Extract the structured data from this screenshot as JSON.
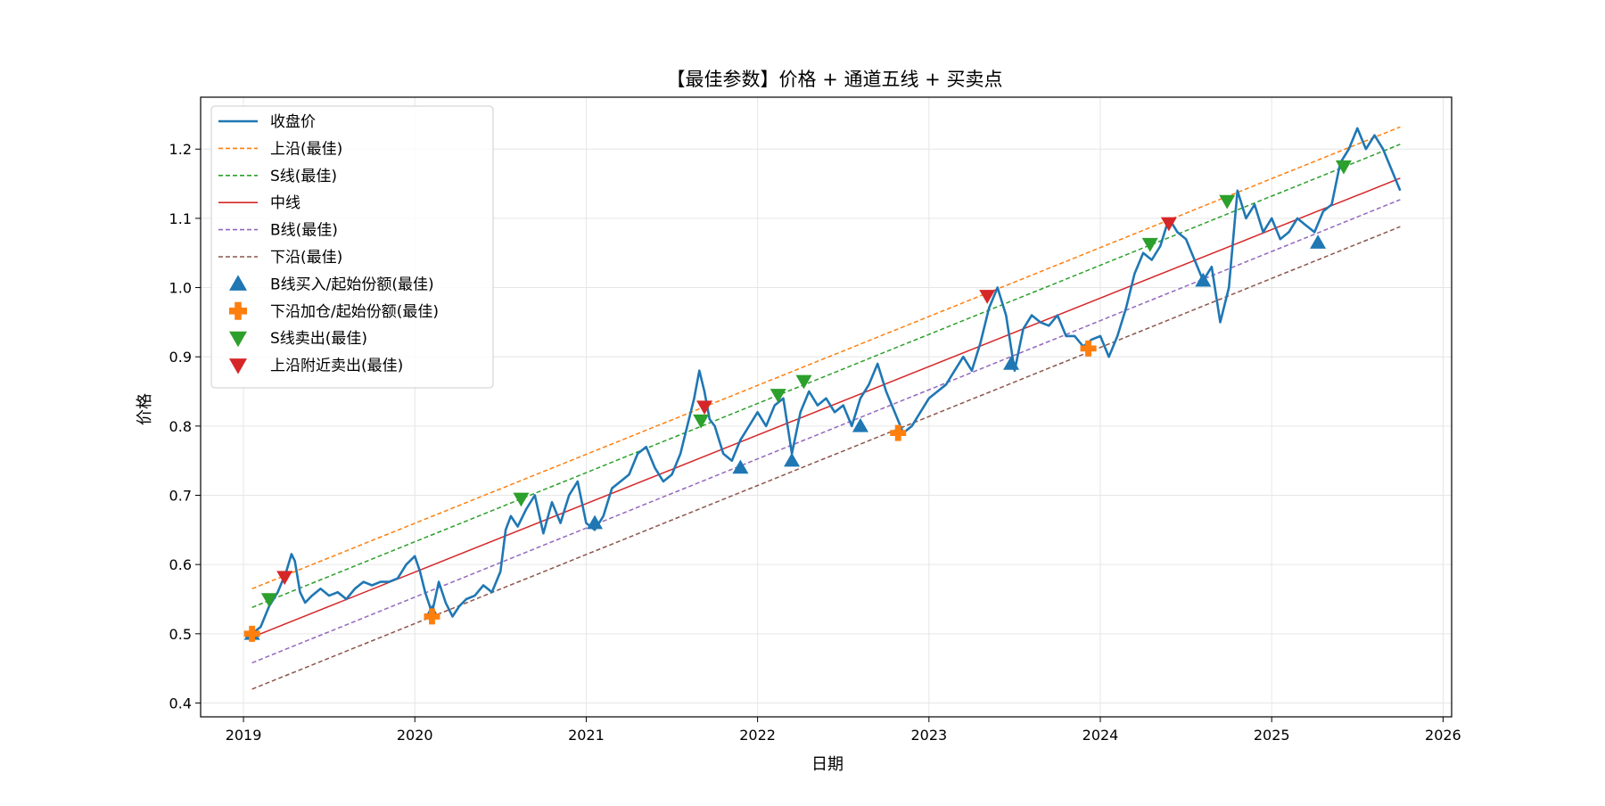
{
  "chart_data": {
    "type": "line",
    "title": "【最佳参数】价格 + 通道五线 + 买卖点",
    "xlabel": "日期",
    "ylabel": "价格",
    "xlim": [
      2018.75,
      2026.05
    ],
    "ylim": [
      0.38,
      1.275
    ],
    "grid": true,
    "legend_position": "top-left",
    "x_ticks": [
      2019,
      2020,
      2021,
      2022,
      2023,
      2024,
      2025,
      2026
    ],
    "x_tick_labels": [
      "2019",
      "2020",
      "2021",
      "2022",
      "2023",
      "2024",
      "2025",
      "2026"
    ],
    "y_ticks": [
      0.4,
      0.5,
      0.6,
      0.7,
      0.8,
      0.9,
      1.0,
      1.1,
      1.2
    ],
    "y_tick_labels": [
      "0.4",
      "0.5",
      "0.6",
      "0.7",
      "0.8",
      "0.9",
      "1.0",
      "1.1",
      "1.2"
    ],
    "channel_lines": [
      {
        "name": "上沿(最佳)",
        "color": "#ff7f0e",
        "dash": true,
        "start": [
          2019.05,
          0.565
        ],
        "end": [
          2025.75,
          1.232
        ]
      },
      {
        "name": "S线(最佳)",
        "color": "#2ca02c",
        "dash": true,
        "start": [
          2019.05,
          0.538
        ],
        "end": [
          2025.75,
          1.207
        ]
      },
      {
        "name": "中线",
        "color": "#d62728",
        "dash": false,
        "start": [
          2019.05,
          0.495
        ],
        "end": [
          2025.75,
          1.158
        ]
      },
      {
        "name": "B线(最佳)",
        "color": "#9467bd",
        "dash": true,
        "start": [
          2019.05,
          0.458
        ],
        "end": [
          2025.75,
          1.127
        ]
      },
      {
        "name": "下沿(最佳)",
        "color": "#8c564b",
        "dash": true,
        "start": [
          2019.05,
          0.42
        ],
        "end": [
          2025.75,
          1.088
        ]
      }
    ],
    "price_series": {
      "name": "收盘价",
      "color": "#1f77b4",
      "x": [
        2019.05,
        2019.1,
        2019.15,
        2019.2,
        2019.25,
        2019.28,
        2019.3,
        2019.33,
        2019.36,
        2019.4,
        2019.45,
        2019.5,
        2019.55,
        2019.6,
        2019.65,
        2019.7,
        2019.75,
        2019.8,
        2019.85,
        2019.9,
        2019.95,
        2020.0,
        2020.03,
        2020.06,
        2020.1,
        2020.14,
        2020.18,
        2020.22,
        2020.26,
        2020.3,
        2020.35,
        2020.4,
        2020.45,
        2020.5,
        2020.53,
        2020.56,
        2020.6,
        2020.65,
        2020.7,
        2020.75,
        2020.8,
        2020.85,
        2020.9,
        2020.95,
        2021.0,
        2021.05,
        2021.1,
        2021.15,
        2021.2,
        2021.25,
        2021.3,
        2021.35,
        2021.4,
        2021.45,
        2021.5,
        2021.55,
        2021.6,
        2021.63,
        2021.66,
        2021.69,
        2021.72,
        2021.75,
        2021.8,
        2021.85,
        2021.9,
        2021.95,
        2022.0,
        2022.05,
        2022.1,
        2022.15,
        2022.2,
        2022.25,
        2022.3,
        2022.35,
        2022.4,
        2022.45,
        2022.5,
        2022.55,
        2022.6,
        2022.65,
        2022.7,
        2022.75,
        2022.8,
        2022.85,
        2022.9,
        2022.95,
        2023.0,
        2023.05,
        2023.1,
        2023.15,
        2023.2,
        2023.25,
        2023.3,
        2023.35,
        2023.4,
        2023.45,
        2023.5,
        2023.55,
        2023.6,
        2023.65,
        2023.7,
        2023.75,
        2023.8,
        2023.85,
        2023.9,
        2023.95,
        2024.0,
        2024.05,
        2024.1,
        2024.15,
        2024.2,
        2024.25,
        2024.3,
        2024.35,
        2024.4,
        2024.45,
        2024.5,
        2024.55,
        2024.6,
        2024.65,
        2024.7,
        2024.75,
        2024.8,
        2024.85,
        2024.9,
        2024.95,
        2025.0,
        2025.05,
        2025.1,
        2025.15,
        2025.2,
        2025.25,
        2025.3,
        2025.35,
        2025.4,
        2025.45,
        2025.5,
        2025.55,
        2025.6,
        2025.65,
        2025.7,
        2025.75
      ],
      "y": [
        0.5,
        0.51,
        0.54,
        0.56,
        0.59,
        0.615,
        0.605,
        0.56,
        0.545,
        0.555,
        0.565,
        0.555,
        0.56,
        0.55,
        0.565,
        0.575,
        0.57,
        0.575,
        0.575,
        0.58,
        0.6,
        0.612,
        0.59,
        0.56,
        0.53,
        0.575,
        0.545,
        0.525,
        0.54,
        0.55,
        0.555,
        0.57,
        0.56,
        0.59,
        0.65,
        0.67,
        0.655,
        0.68,
        0.7,
        0.645,
        0.69,
        0.66,
        0.7,
        0.72,
        0.66,
        0.65,
        0.67,
        0.71,
        0.72,
        0.73,
        0.76,
        0.77,
        0.74,
        0.72,
        0.73,
        0.76,
        0.81,
        0.84,
        0.88,
        0.85,
        0.81,
        0.8,
        0.76,
        0.75,
        0.78,
        0.8,
        0.82,
        0.8,
        0.83,
        0.84,
        0.76,
        0.82,
        0.85,
        0.83,
        0.84,
        0.82,
        0.83,
        0.8,
        0.84,
        0.86,
        0.89,
        0.85,
        0.82,
        0.79,
        0.8,
        0.82,
        0.84,
        0.85,
        0.86,
        0.88,
        0.9,
        0.88,
        0.92,
        0.97,
        1.0,
        0.96,
        0.88,
        0.94,
        0.96,
        0.95,
        0.945,
        0.96,
        0.93,
        0.93,
        0.915,
        0.925,
        0.93,
        0.9,
        0.93,
        0.97,
        1.02,
        1.05,
        1.04,
        1.06,
        1.1,
        1.08,
        1.07,
        1.04,
        1.01,
        1.03,
        0.95,
        1.0,
        1.14,
        1.1,
        1.12,
        1.08,
        1.1,
        1.07,
        1.08,
        1.1,
        1.09,
        1.08,
        1.11,
        1.12,
        1.18,
        1.2,
        1.23,
        1.2,
        1.22,
        1.2,
        1.17,
        1.14
      ]
    },
    "markers": [
      {
        "name": "B线买入/起始份额(最佳)",
        "shape": "triangle-up",
        "color": "#1f77b4",
        "x": [
          2019.05,
          2020.1,
          2021.05,
          2021.9,
          2022.2,
          2022.6,
          2023.48,
          2024.6,
          2025.27
        ],
        "y": [
          0.5,
          0.53,
          0.66,
          0.74,
          0.75,
          0.8,
          0.89,
          1.01,
          1.065
        ]
      },
      {
        "name": "下沿加仓/起始份额(最佳)",
        "shape": "plus",
        "color": "#ff7f0e",
        "x": [
          2019.05,
          2020.1,
          2022.82,
          2023.93
        ],
        "y": [
          0.5,
          0.525,
          0.79,
          0.912
        ]
      },
      {
        "name": "S线卖出(最佳)",
        "shape": "triangle-down",
        "color": "#2ca02c",
        "x": [
          2019.15,
          2020.62,
          2021.67,
          2022.12,
          2022.27,
          2024.29,
          2024.74,
          2025.42
        ],
        "y": [
          0.55,
          0.695,
          0.808,
          0.845,
          0.865,
          1.063,
          1.125,
          1.175
        ]
      },
      {
        "name": "上沿附近卖出(最佳)",
        "shape": "triangle-down",
        "color": "#d62728",
        "x": [
          2019.24,
          2021.69,
          2023.34,
          2024.4
        ],
        "y": [
          0.582,
          0.828,
          0.988,
          1.093
        ]
      }
    ],
    "legend": [
      {
        "label": "收盘价",
        "kind": "line",
        "color": "#1f77b4",
        "dash": false
      },
      {
        "label": "上沿(最佳)",
        "kind": "line",
        "color": "#ff7f0e",
        "dash": true
      },
      {
        "label": "S线(最佳)",
        "kind": "line",
        "color": "#2ca02c",
        "dash": true
      },
      {
        "label": "中线",
        "kind": "line",
        "color": "#d62728",
        "dash": false
      },
      {
        "label": "B线(最佳)",
        "kind": "line",
        "color": "#9467bd",
        "dash": true
      },
      {
        "label": "下沿(最佳)",
        "kind": "line",
        "color": "#8c564b",
        "dash": true
      },
      {
        "label": "B线买入/起始份额(最佳)",
        "kind": "triangle-up",
        "color": "#1f77b4"
      },
      {
        "label": "下沿加仓/起始份额(最佳)",
        "kind": "plus",
        "color": "#ff7f0e"
      },
      {
        "label": "S线卖出(最佳)",
        "kind": "triangle-down",
        "color": "#2ca02c"
      },
      {
        "label": "上沿附近卖出(最佳)",
        "kind": "triangle-down",
        "color": "#d62728"
      }
    ]
  }
}
